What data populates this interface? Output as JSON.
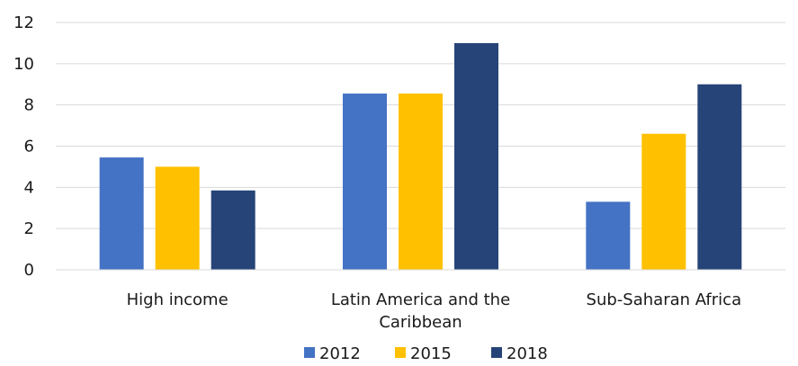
{
  "chart_data": {
    "type": "bar",
    "categories": [
      "High income",
      "Latin America and the Caribbean",
      "Sub-Saharan Africa"
    ],
    "category_label_lines": [
      [
        "High income"
      ],
      [
        "Latin America and the",
        "Caribbean"
      ],
      [
        "Sub-Saharan Africa"
      ]
    ],
    "series": [
      {
        "name": "2012",
        "color": "#4472c4",
        "values": [
          5.45,
          8.55,
          3.3
        ]
      },
      {
        "name": "2015",
        "color": "#ffc000",
        "values": [
          5.0,
          8.55,
          6.6
        ]
      },
      {
        "name": "2018",
        "color": "#264478",
        "values": [
          3.85,
          11.0,
          9.0
        ]
      }
    ],
    "ylim": [
      0,
      12
    ],
    "yticks": [
      0,
      2,
      4,
      6,
      8,
      10,
      12
    ],
    "grid": true,
    "legend_position": "bottom",
    "title": "",
    "xlabel": "",
    "ylabel": ""
  }
}
